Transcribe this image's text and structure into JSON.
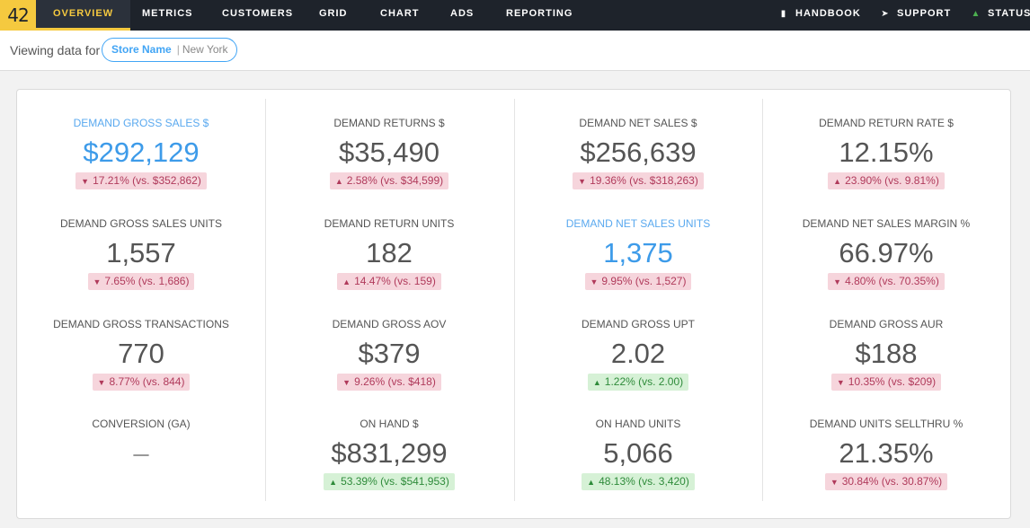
{
  "nav": {
    "logo": "42",
    "items": [
      "OVERVIEW",
      "METRICS",
      "CUSTOMERS",
      "GRID",
      "CHART",
      "ADS",
      "REPORTING"
    ],
    "right": [
      {
        "label": "HANDBOOK",
        "icon": "book-icon"
      },
      {
        "label": "SUPPORT",
        "icon": "paper-plane-icon"
      },
      {
        "label": "STATUS",
        "icon": "thumbs-up-icon"
      }
    ],
    "accent": "#f5c93f"
  },
  "subbar": {
    "viewing_label": "Viewing data for",
    "store_label": "Store Name",
    "store_city": "New York"
  },
  "metrics": [
    [
      {
        "label": "DEMAND GROSS SALES $",
        "value": "$292,129",
        "change": "17.21% (vs. $352,862)",
        "dir": "down",
        "highlight": true
      },
      {
        "label": "DEMAND GROSS SALES UNITS",
        "value": "1,557",
        "change": "7.65% (vs. 1,686)",
        "dir": "down"
      },
      {
        "label": "DEMAND GROSS TRANSACTIONS",
        "value": "770",
        "change": "8.77% (vs. 844)",
        "dir": "down"
      },
      {
        "label": "CONVERSION (GA)",
        "value": "–",
        "change": "",
        "dir": "none"
      }
    ],
    [
      {
        "label": "DEMAND RETURNS $",
        "value": "$35,490",
        "change": "2.58% (vs. $34,599)",
        "dir": "up-bad"
      },
      {
        "label": "DEMAND RETURN UNITS",
        "value": "182",
        "change": "14.47% (vs. 159)",
        "dir": "up-bad"
      },
      {
        "label": "DEMAND GROSS AOV",
        "value": "$379",
        "change": "9.26% (vs. $418)",
        "dir": "down"
      },
      {
        "label": "ON HAND $",
        "value": "$831,299",
        "change": "53.39% (vs. $541,953)",
        "dir": "up"
      }
    ],
    [
      {
        "label": "DEMAND NET SALES $",
        "value": "$256,639",
        "change": "19.36% (vs. $318,263)",
        "dir": "down"
      },
      {
        "label": "DEMAND NET SALES UNITS",
        "value": "1,375",
        "change": "9.95% (vs. 1,527)",
        "dir": "down",
        "highlight": true
      },
      {
        "label": "DEMAND GROSS UPT",
        "value": "2.02",
        "change": "1.22% (vs. 2.00)",
        "dir": "up"
      },
      {
        "label": "ON HAND UNITS",
        "value": "5,066",
        "change": "48.13% (vs. 3,420)",
        "dir": "up"
      }
    ],
    [
      {
        "label": "DEMAND RETURN RATE $",
        "value": "12.15%",
        "change": "23.90% (vs. 9.81%)",
        "dir": "up-bad"
      },
      {
        "label": "DEMAND NET SALES MARGIN %",
        "value": "66.97%",
        "change": "4.80% (vs. 70.35%)",
        "dir": "down"
      },
      {
        "label": "DEMAND GROSS AUR",
        "value": "$188",
        "change": "10.35% (vs. $209)",
        "dir": "down"
      },
      {
        "label": "DEMAND UNITS SELLTHRU %",
        "value": "21.35%",
        "change": "30.84% (vs. 30.87%)",
        "dir": "down"
      }
    ]
  ]
}
